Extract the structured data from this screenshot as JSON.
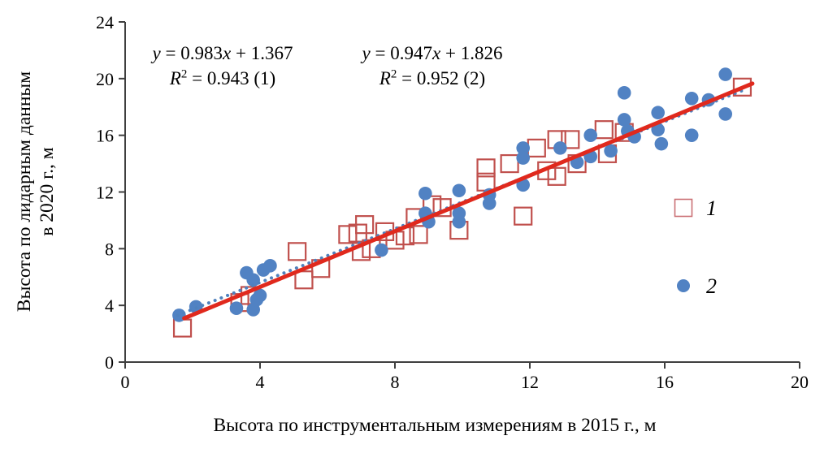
{
  "chart_data": {
    "type": "scatter",
    "title": "",
    "xlabel": "Высота по инструментальным измерениям в 2015 г., м",
    "ylabel_lines": [
      "Высота по лидарным данным",
      "в 2020 г., м"
    ],
    "xlim": [
      0,
      20
    ],
    "ylim": [
      0,
      24
    ],
    "xticks": [
      0,
      4,
      8,
      12,
      16,
      20
    ],
    "yticks": [
      0,
      4,
      8,
      12,
      16,
      20,
      24
    ],
    "grid": false,
    "axis_color": "#3f3f3f",
    "series": [
      {
        "name": "1",
        "marker": "open-square",
        "color": "#c0504d",
        "legend_color": "#ca6f74",
        "points": [
          [
            1.7,
            2.4
          ],
          [
            3.4,
            4.2
          ],
          [
            3.7,
            4.7
          ],
          [
            5.1,
            7.8
          ],
          [
            5.3,
            5.8
          ],
          [
            5.8,
            6.6
          ],
          [
            6.6,
            9.0
          ],
          [
            6.9,
            9.1
          ],
          [
            7.0,
            7.8
          ],
          [
            7.1,
            9.7
          ],
          [
            7.3,
            8.0
          ],
          [
            7.7,
            9.2
          ],
          [
            8.0,
            8.6
          ],
          [
            8.3,
            8.9
          ],
          [
            8.6,
            10.2
          ],
          [
            8.7,
            9.0
          ],
          [
            9.1,
            11.1
          ],
          [
            9.4,
            10.9
          ],
          [
            9.9,
            9.3
          ],
          [
            10.7,
            13.7
          ],
          [
            10.7,
            12.7
          ],
          [
            11.4,
            14.0
          ],
          [
            11.8,
            10.3
          ],
          [
            12.2,
            15.1
          ],
          [
            12.5,
            13.5
          ],
          [
            12.8,
            13.1
          ],
          [
            12.8,
            15.7
          ],
          [
            13.2,
            15.7
          ],
          [
            13.4,
            14.0
          ],
          [
            14.2,
            16.4
          ],
          [
            14.3,
            14.7
          ],
          [
            14.8,
            16.2
          ],
          [
            18.3,
            19.4
          ]
        ]
      },
      {
        "name": "2",
        "marker": "filled-circle",
        "color": "#5182c3",
        "points": [
          [
            1.6,
            3.3
          ],
          [
            2.1,
            3.9
          ],
          [
            3.3,
            3.8
          ],
          [
            3.8,
            3.7
          ],
          [
            3.9,
            4.4
          ],
          [
            4.0,
            4.7
          ],
          [
            3.6,
            6.3
          ],
          [
            3.8,
            5.8
          ],
          [
            4.1,
            6.5
          ],
          [
            4.3,
            6.8
          ],
          [
            7.6,
            7.9
          ],
          [
            8.9,
            11.9
          ],
          [
            8.9,
            10.5
          ],
          [
            9.0,
            9.9
          ],
          [
            9.9,
            12.1
          ],
          [
            9.9,
            10.5
          ],
          [
            9.9,
            9.9
          ],
          [
            10.8,
            11.8
          ],
          [
            10.8,
            11.2
          ],
          [
            11.8,
            12.5
          ],
          [
            11.8,
            15.1
          ],
          [
            11.8,
            14.4
          ],
          [
            12.9,
            15.1
          ],
          [
            13.4,
            14.1
          ],
          [
            13.8,
            16.0
          ],
          [
            13.8,
            14.5
          ],
          [
            14.4,
            14.9
          ],
          [
            14.8,
            19.0
          ],
          [
            14.8,
            17.1
          ],
          [
            14.9,
            16.3
          ],
          [
            15.1,
            15.9
          ],
          [
            15.8,
            17.6
          ],
          [
            15.8,
            16.4
          ],
          [
            15.9,
            15.4
          ],
          [
            16.8,
            18.6
          ],
          [
            16.8,
            16.0
          ],
          [
            17.3,
            18.5
          ],
          [
            17.8,
            20.3
          ],
          [
            17.8,
            17.5
          ]
        ]
      }
    ],
    "trendlines": [
      {
        "for_series": "1",
        "style": "solid",
        "color": "#e0291d",
        "slope": 0.983,
        "intercept": 1.367,
        "x_range": [
          1.75,
          18.6
        ],
        "equation": "y = 0.983x + 1.367",
        "r2_label": "R² = 0.943 (1)"
      },
      {
        "for_series": "2",
        "style": "dotted",
        "color": "#4f81bd",
        "slope": 0.947,
        "intercept": 1.826,
        "x_range": [
          1.55,
          18.45
        ],
        "equation": "y = 0.947x + 1.826",
        "r2_label": "R² = 0.952 (2)"
      }
    ],
    "legend": {
      "position": "right",
      "items": [
        {
          "label": "1",
          "marker": "open-square"
        },
        {
          "label": "2",
          "marker": "filled-circle"
        }
      ]
    }
  }
}
